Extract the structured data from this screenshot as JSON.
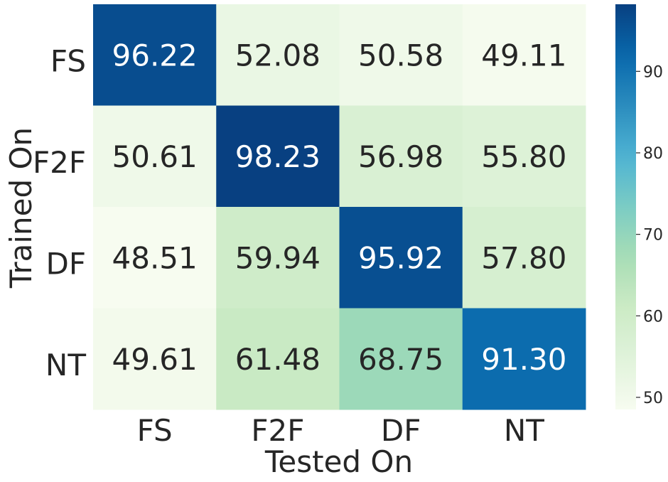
{
  "chart_data": {
    "type": "heatmap",
    "title": "",
    "xlabel": "Tested On",
    "ylabel": "Trained On",
    "x_categories": [
      "FS",
      "F2F",
      "DF",
      "NT"
    ],
    "y_categories": [
      "FS",
      "F2F",
      "DF",
      "NT"
    ],
    "values": [
      [
        96.22,
        52.08,
        50.58,
        49.11
      ],
      [
        50.61,
        98.23,
        56.98,
        55.8
      ],
      [
        48.51,
        59.94,
        95.92,
        57.8
      ],
      [
        49.61,
        61.48,
        68.75,
        91.3
      ]
    ],
    "value_labels": [
      [
        "96.22",
        "52.08",
        "50.58",
        "49.11"
      ],
      [
        "50.61",
        "98.23",
        "56.98",
        "55.80"
      ],
      [
        "48.51",
        "59.94",
        "95.92",
        "57.80"
      ],
      [
        "49.61",
        "61.48",
        "68.75",
        "91.30"
      ]
    ],
    "colorbar": {
      "colormap": "GnBu",
      "vmin": 48.51,
      "vmax": 98.23,
      "ticks": [
        50,
        60,
        70,
        80,
        90
      ],
      "tick_labels": [
        "50",
        "60",
        "70",
        "80",
        "90"
      ]
    },
    "colors": {
      "dark_text": "#262626",
      "light_text": "#ffffff",
      "scale": [
        "#f7fcf0",
        "#e0f3db",
        "#ccebc5",
        "#a8ddb5",
        "#7bccc4",
        "#4eb3d3",
        "#2b8cbe",
        "#0868ac",
        "#084081"
      ]
    },
    "grid": false
  }
}
